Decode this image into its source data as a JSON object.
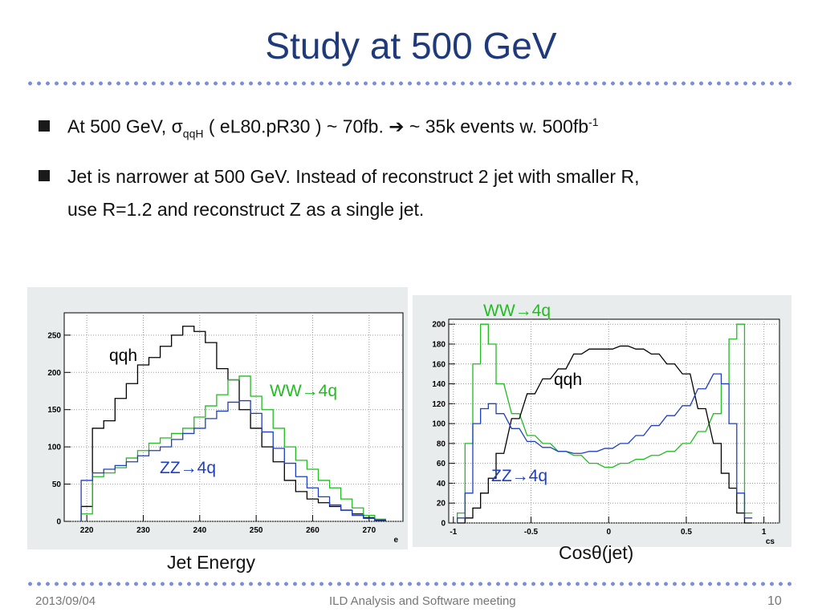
{
  "slide": {
    "title": "Study at 500 GeV",
    "bullets": [
      {
        "pre": "At 500 GeV, ",
        "sigma": "σ",
        "sub": "qqH",
        "mid": " ( eL80.pR30 ) ~ 70fb.  ",
        "arrow": "➔",
        "post": " ~ 35k events w. 500fb",
        "sup": "-1"
      },
      {
        "line1": "Jet is narrower at 500 GeV.  Instead of reconstruct 2 jet with smaller R,",
        "line2": "use R=1.2 and reconstruct Z as a single jet."
      }
    ],
    "footer": {
      "date": "2013/09/04",
      "center": "ILD Analysis and Software meeting",
      "page": "10"
    }
  },
  "chart_data": [
    {
      "type": "line",
      "caption": "Jet Energy",
      "xlabel": "e",
      "xlim": [
        216,
        276
      ],
      "ylim": [
        0,
        280
      ],
      "xticks": [
        220,
        230,
        240,
        250,
        260,
        270
      ],
      "yticks": [
        0,
        50,
        100,
        150,
        200,
        250
      ],
      "grid": true,
      "annotations": [
        {
          "text": "qqh",
          "color": "#000000"
        },
        {
          "text": "WW→4q",
          "color": "#22bb22"
        },
        {
          "text": "ZZ→4q",
          "color": "#1f3fbf"
        }
      ],
      "series": [
        {
          "name": "qqh",
          "color": "#000000",
          "x": [
            220,
            222,
            224,
            226,
            228,
            230,
            232,
            234,
            236,
            238,
            240,
            242,
            244,
            246,
            248,
            250,
            252,
            254,
            256,
            258,
            260,
            262,
            264,
            266,
            268,
            270,
            272
          ],
          "y": [
            20,
            125,
            135,
            165,
            185,
            210,
            220,
            235,
            250,
            262,
            255,
            240,
            205,
            190,
            150,
            125,
            100,
            80,
            55,
            40,
            30,
            25,
            20,
            15,
            10,
            5,
            2
          ]
        },
        {
          "name": "WW→4q",
          "color": "#22bb22",
          "x": [
            220,
            222,
            224,
            226,
            228,
            230,
            232,
            234,
            236,
            238,
            240,
            242,
            244,
            246,
            248,
            250,
            252,
            254,
            256,
            258,
            260,
            262,
            264,
            266,
            268,
            270,
            272
          ],
          "y": [
            10,
            60,
            65,
            72,
            85,
            95,
            105,
            112,
            118,
            125,
            140,
            155,
            170,
            190,
            195,
            168,
            150,
            125,
            100,
            82,
            70,
            55,
            45,
            30,
            18,
            8,
            3
          ]
        },
        {
          "name": "ZZ→4q",
          "color": "#1f3fbf",
          "x": [
            220,
            222,
            224,
            226,
            228,
            230,
            232,
            234,
            236,
            238,
            240,
            242,
            244,
            246,
            248,
            250,
            252,
            254,
            256,
            258,
            260,
            262,
            264,
            266,
            268,
            270,
            272
          ],
          "y": [
            55,
            65,
            70,
            75,
            80,
            88,
            95,
            100,
            110,
            118,
            125,
            138,
            148,
            160,
            162,
            145,
            120,
            98,
            78,
            60,
            45,
            33,
            22,
            15,
            8,
            4,
            1
          ]
        }
      ]
    },
    {
      "type": "line",
      "caption": "Cosθ(jet)",
      "xlabel": "cs",
      "xlim": [
        -1.03,
        1.1
      ],
      "ylim": [
        0,
        205
      ],
      "xticks": [
        -1,
        -0.5,
        0,
        0.5,
        1
      ],
      "yticks": [
        0,
        20,
        40,
        60,
        80,
        100,
        120,
        140,
        160,
        180,
        200
      ],
      "grid": true,
      "annotations": [
        {
          "text": "WW→4q",
          "color": "#22bb22"
        },
        {
          "text": "qqh",
          "color": "#000000"
        },
        {
          "text": "ZZ→4q",
          "color": "#1f3fbf"
        }
      ],
      "series": [
        {
          "name": "WW→4q",
          "color": "#22bb22",
          "x": [
            -0.95,
            -0.9,
            -0.85,
            -0.8,
            -0.75,
            -0.7,
            -0.6,
            -0.5,
            -0.4,
            -0.3,
            -0.2,
            -0.1,
            0,
            0.1,
            0.2,
            0.3,
            0.4,
            0.5,
            0.6,
            0.7,
            0.75,
            0.8,
            0.85,
            0.9
          ],
          "y": [
            10,
            80,
            160,
            200,
            180,
            140,
            110,
            88,
            80,
            72,
            68,
            60,
            56,
            60,
            64,
            68,
            72,
            80,
            92,
            110,
            140,
            185,
            200,
            10
          ]
        },
        {
          "name": "qqh",
          "color": "#000000",
          "x": [
            -0.95,
            -0.9,
            -0.85,
            -0.8,
            -0.75,
            -0.7,
            -0.6,
            -0.5,
            -0.4,
            -0.3,
            -0.2,
            -0.1,
            0,
            0.1,
            0.2,
            0.3,
            0.4,
            0.5,
            0.6,
            0.7,
            0.75,
            0.8,
            0.85,
            0.9
          ],
          "y": [
            0,
            5,
            15,
            30,
            45,
            70,
            105,
            130,
            145,
            155,
            170,
            175,
            175,
            178,
            175,
            170,
            160,
            150,
            115,
            80,
            50,
            35,
            10,
            0
          ]
        },
        {
          "name": "ZZ→4q",
          "color": "#1f3fbf",
          "x": [
            -0.95,
            -0.9,
            -0.85,
            -0.8,
            -0.75,
            -0.7,
            -0.6,
            -0.5,
            -0.4,
            -0.3,
            -0.2,
            -0.1,
            0,
            0.1,
            0.2,
            0.3,
            0.4,
            0.5,
            0.6,
            0.7,
            0.75,
            0.8,
            0.85,
            0.9
          ],
          "y": [
            5,
            30,
            100,
            115,
            120,
            110,
            95,
            82,
            76,
            72,
            70,
            72,
            75,
            80,
            88,
            98,
            108,
            118,
            135,
            150,
            140,
            100,
            30,
            5
          ]
        }
      ]
    }
  ]
}
